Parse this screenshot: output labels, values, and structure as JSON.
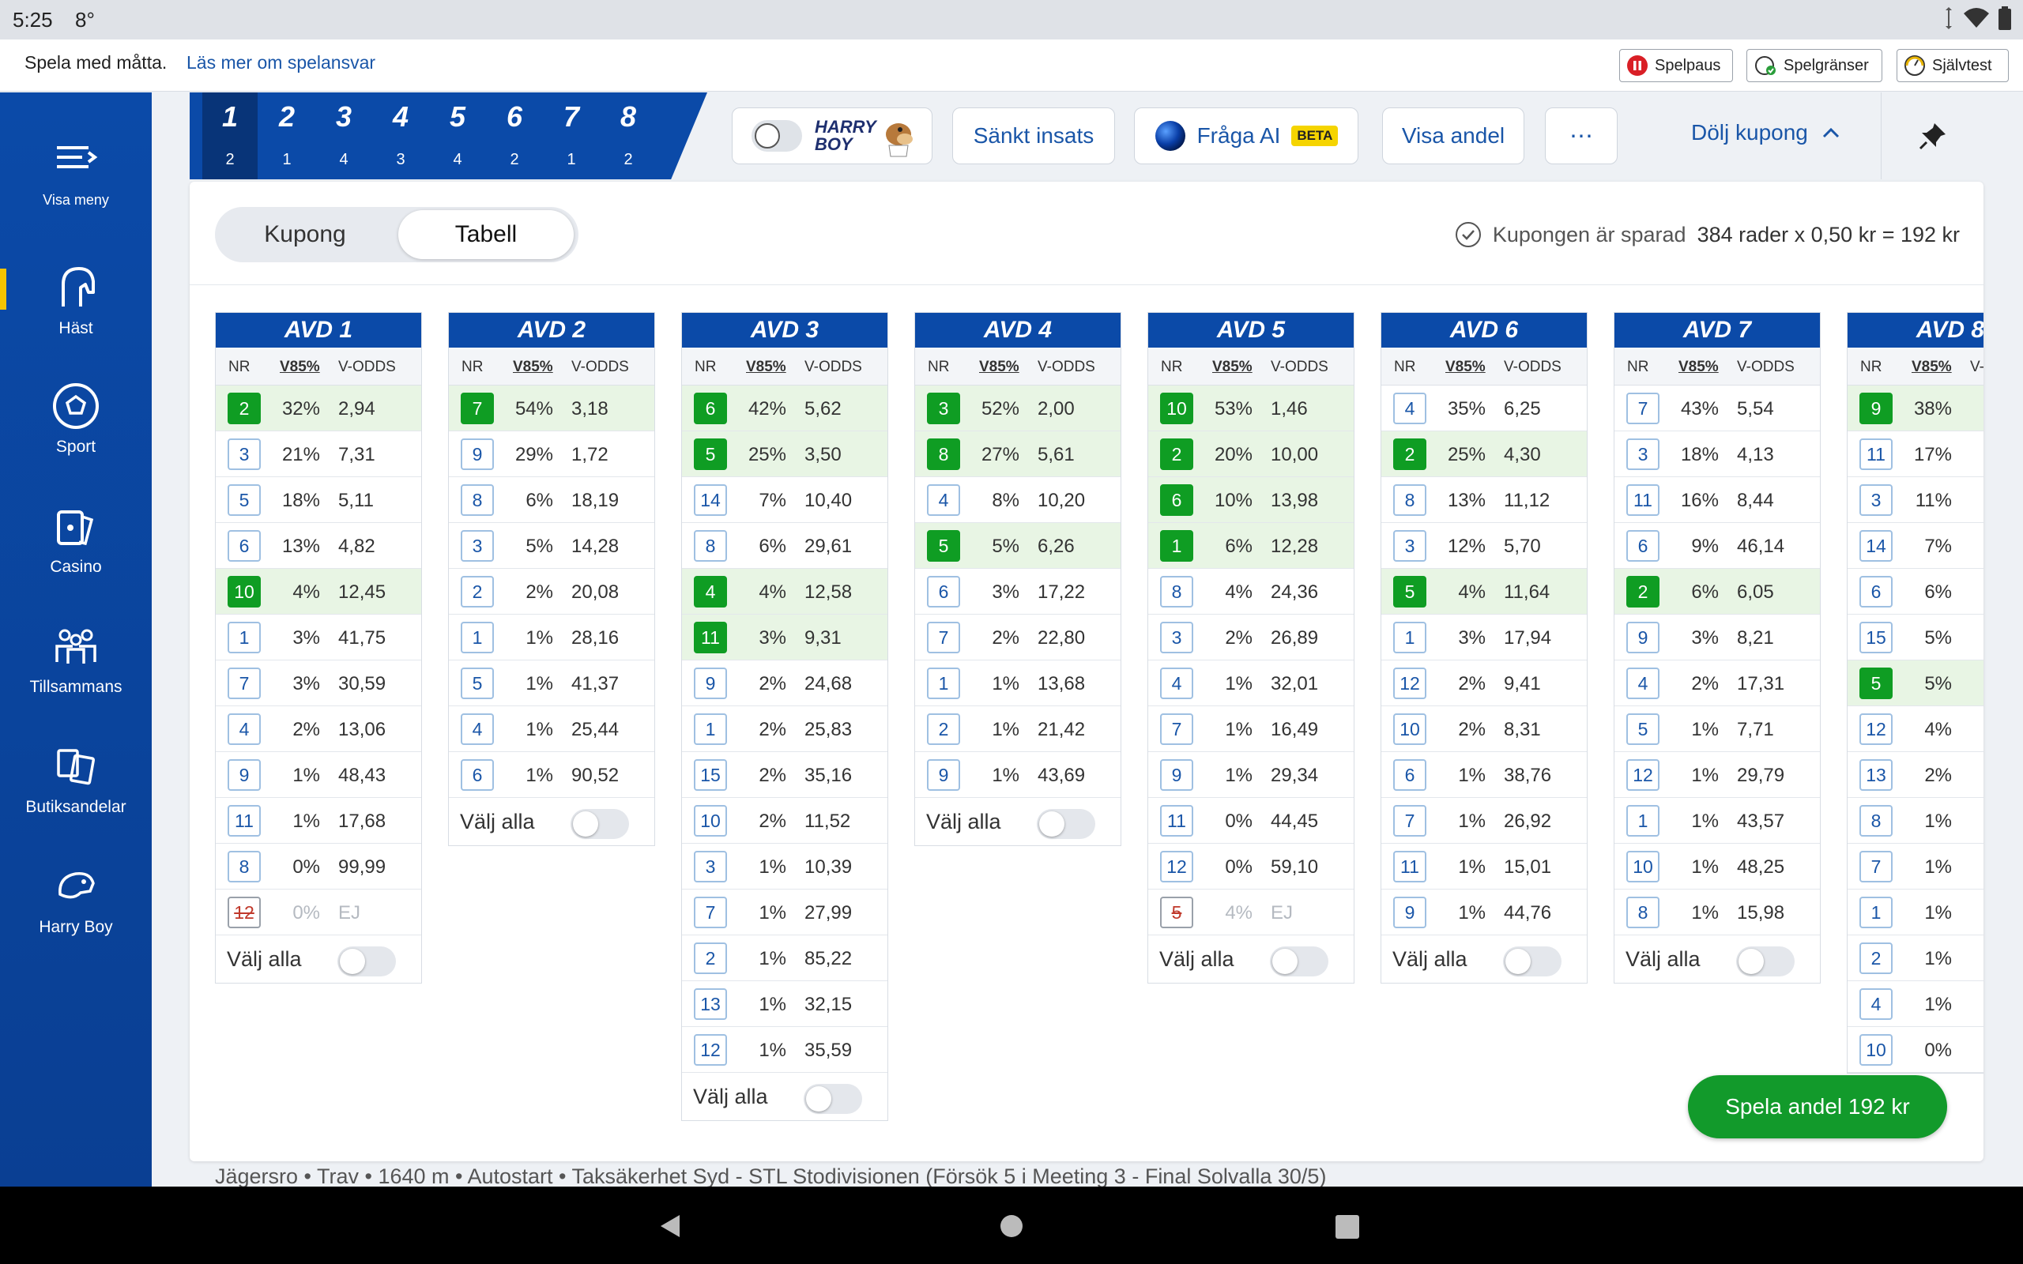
{
  "status_bar": {
    "time": "5:25",
    "temp": "8°"
  },
  "rg_bar": {
    "message": "Spela med måtta.",
    "link": "Läs mer om spelansvar",
    "buttons": [
      "Spelpaus",
      "Spelgränser",
      "Självtest"
    ]
  },
  "sidebar": {
    "menu_label": "Visa meny",
    "items": [
      {
        "label": "Häst",
        "icon": "horse-icon",
        "active": true
      },
      {
        "label": "Sport",
        "icon": "football-icon",
        "active": false
      },
      {
        "label": "Casino",
        "icon": "casino-icon",
        "active": false
      },
      {
        "label": "Tillsammans",
        "icon": "group-icon",
        "active": false
      },
      {
        "label": "Butiksandelar",
        "icon": "store-share-icon",
        "active": false
      },
      {
        "label": "Harry Boy",
        "icon": "harry-boy-icon",
        "active": false
      }
    ]
  },
  "race_tabs": [
    {
      "num": "1",
      "count": "2"
    },
    {
      "num": "2",
      "count": "1"
    },
    {
      "num": "3",
      "count": "4"
    },
    {
      "num": "4",
      "count": "3"
    },
    {
      "num": "5",
      "count": "4"
    },
    {
      "num": "6",
      "count": "2"
    },
    {
      "num": "7",
      "count": "1"
    },
    {
      "num": "8",
      "count": "2"
    }
  ],
  "toolbar": {
    "harry_boy_logo": "HARRY BOY",
    "sankt_insats": "Sänkt insats",
    "fraga_ai": "Fråga AI",
    "beta": "BETA",
    "visa_andel": "Visa andel",
    "more": "⋯",
    "dolj_kupong": "Dölj kupong"
  },
  "coupon": {
    "tab_kupong": "Kupong",
    "tab_tabell": "Tabell",
    "saved_text": "Kupongen är sparad",
    "summary": "384 rader x 0,50 kr = 192 kr"
  },
  "columns": {
    "nr": "NR",
    "v85": "V85%",
    "vodds": "V-ODDS"
  },
  "valj_alla": "Välj alla",
  "races": [
    {
      "title": "AVD 1",
      "rows": [
        {
          "nr": "2",
          "pct": "32%",
          "odds": "2,94",
          "sel": true
        },
        {
          "nr": "3",
          "pct": "21%",
          "odds": "7,31"
        },
        {
          "nr": "5",
          "pct": "18%",
          "odds": "5,11"
        },
        {
          "nr": "6",
          "pct": "13%",
          "odds": "4,82"
        },
        {
          "nr": "10",
          "pct": "4%",
          "odds": "12,45",
          "sel": true
        },
        {
          "nr": "1",
          "pct": "3%",
          "odds": "41,75"
        },
        {
          "nr": "7",
          "pct": "3%",
          "odds": "30,59"
        },
        {
          "nr": "4",
          "pct": "2%",
          "odds": "13,06"
        },
        {
          "nr": "9",
          "pct": "1%",
          "odds": "48,43"
        },
        {
          "nr": "11",
          "pct": "1%",
          "odds": "17,68"
        },
        {
          "nr": "8",
          "pct": "0%",
          "odds": "99,99"
        },
        {
          "nr": "12",
          "pct": "0%",
          "odds": "EJ",
          "scratched": true
        }
      ]
    },
    {
      "title": "AVD 2",
      "rows": [
        {
          "nr": "7",
          "pct": "54%",
          "odds": "3,18",
          "sel": true
        },
        {
          "nr": "9",
          "pct": "29%",
          "odds": "1,72"
        },
        {
          "nr": "8",
          "pct": "6%",
          "odds": "18,19"
        },
        {
          "nr": "3",
          "pct": "5%",
          "odds": "14,28"
        },
        {
          "nr": "2",
          "pct": "2%",
          "odds": "20,08"
        },
        {
          "nr": "1",
          "pct": "1%",
          "odds": "28,16"
        },
        {
          "nr": "5",
          "pct": "1%",
          "odds": "41,37"
        },
        {
          "nr": "4",
          "pct": "1%",
          "odds": "25,44"
        },
        {
          "nr": "6",
          "pct": "1%",
          "odds": "90,52"
        }
      ]
    },
    {
      "title": "AVD 3",
      "rows": [
        {
          "nr": "6",
          "pct": "42%",
          "odds": "5,62",
          "sel": true
        },
        {
          "nr": "5",
          "pct": "25%",
          "odds": "3,50",
          "sel": true
        },
        {
          "nr": "14",
          "pct": "7%",
          "odds": "10,40"
        },
        {
          "nr": "8",
          "pct": "6%",
          "odds": "29,61"
        },
        {
          "nr": "4",
          "pct": "4%",
          "odds": "12,58",
          "sel": true
        },
        {
          "nr": "11",
          "pct": "3%",
          "odds": "9,31",
          "sel": true
        },
        {
          "nr": "9",
          "pct": "2%",
          "odds": "24,68"
        },
        {
          "nr": "1",
          "pct": "2%",
          "odds": "25,83"
        },
        {
          "nr": "15",
          "pct": "2%",
          "odds": "35,16"
        },
        {
          "nr": "10",
          "pct": "2%",
          "odds": "11,52"
        },
        {
          "nr": "3",
          "pct": "1%",
          "odds": "10,39"
        },
        {
          "nr": "7",
          "pct": "1%",
          "odds": "27,99"
        },
        {
          "nr": "2",
          "pct": "1%",
          "odds": "85,22"
        },
        {
          "nr": "13",
          "pct": "1%",
          "odds": "32,15"
        },
        {
          "nr": "12",
          "pct": "1%",
          "odds": "35,59"
        }
      ]
    },
    {
      "title": "AVD 4",
      "rows": [
        {
          "nr": "3",
          "pct": "52%",
          "odds": "2,00",
          "sel": true
        },
        {
          "nr": "8",
          "pct": "27%",
          "odds": "5,61",
          "sel": true
        },
        {
          "nr": "4",
          "pct": "8%",
          "odds": "10,20"
        },
        {
          "nr": "5",
          "pct": "5%",
          "odds": "6,26",
          "sel": true
        },
        {
          "nr": "6",
          "pct": "3%",
          "odds": "17,22"
        },
        {
          "nr": "7",
          "pct": "2%",
          "odds": "22,80"
        },
        {
          "nr": "1",
          "pct": "1%",
          "odds": "13,68"
        },
        {
          "nr": "2",
          "pct": "1%",
          "odds": "21,42"
        },
        {
          "nr": "9",
          "pct": "1%",
          "odds": "43,69"
        }
      ]
    },
    {
      "title": "AVD 5",
      "rows": [
        {
          "nr": "10",
          "pct": "53%",
          "odds": "1,46",
          "sel": true
        },
        {
          "nr": "2",
          "pct": "20%",
          "odds": "10,00",
          "sel": true
        },
        {
          "nr": "6",
          "pct": "10%",
          "odds": "13,98",
          "sel": true
        },
        {
          "nr": "1",
          "pct": "6%",
          "odds": "12,28",
          "sel": true
        },
        {
          "nr": "8",
          "pct": "4%",
          "odds": "24,36"
        },
        {
          "nr": "3",
          "pct": "2%",
          "odds": "26,89"
        },
        {
          "nr": "4",
          "pct": "1%",
          "odds": "32,01"
        },
        {
          "nr": "7",
          "pct": "1%",
          "odds": "16,49"
        },
        {
          "nr": "9",
          "pct": "1%",
          "odds": "29,34"
        },
        {
          "nr": "11",
          "pct": "0%",
          "odds": "44,45"
        },
        {
          "nr": "12",
          "pct": "0%",
          "odds": "59,10"
        },
        {
          "nr": "5",
          "pct": "4%",
          "odds": "EJ",
          "scratched": true
        }
      ]
    },
    {
      "title": "AVD 6",
      "rows": [
        {
          "nr": "4",
          "pct": "35%",
          "odds": "6,25"
        },
        {
          "nr": "2",
          "pct": "25%",
          "odds": "4,30",
          "sel": true
        },
        {
          "nr": "8",
          "pct": "13%",
          "odds": "11,12"
        },
        {
          "nr": "3",
          "pct": "12%",
          "odds": "5,70"
        },
        {
          "nr": "5",
          "pct": "4%",
          "odds": "11,64",
          "sel": true
        },
        {
          "nr": "1",
          "pct": "3%",
          "odds": "17,94"
        },
        {
          "nr": "12",
          "pct": "2%",
          "odds": "9,41"
        },
        {
          "nr": "10",
          "pct": "2%",
          "odds": "8,31"
        },
        {
          "nr": "6",
          "pct": "1%",
          "odds": "38,76"
        },
        {
          "nr": "7",
          "pct": "1%",
          "odds": "26,92"
        },
        {
          "nr": "11",
          "pct": "1%",
          "odds": "15,01"
        },
        {
          "nr": "9",
          "pct": "1%",
          "odds": "44,76"
        }
      ]
    },
    {
      "title": "AVD 7",
      "rows": [
        {
          "nr": "7",
          "pct": "43%",
          "odds": "5,54"
        },
        {
          "nr": "3",
          "pct": "18%",
          "odds": "4,13"
        },
        {
          "nr": "11",
          "pct": "16%",
          "odds": "8,44"
        },
        {
          "nr": "6",
          "pct": "9%",
          "odds": "46,14"
        },
        {
          "nr": "2",
          "pct": "6%",
          "odds": "6,05",
          "sel": true
        },
        {
          "nr": "9",
          "pct": "3%",
          "odds": "8,21"
        },
        {
          "nr": "4",
          "pct": "2%",
          "odds": "17,31"
        },
        {
          "nr": "5",
          "pct": "1%",
          "odds": "7,71"
        },
        {
          "nr": "12",
          "pct": "1%",
          "odds": "29,79"
        },
        {
          "nr": "1",
          "pct": "1%",
          "odds": "43,57"
        },
        {
          "nr": "10",
          "pct": "1%",
          "odds": "48,25"
        },
        {
          "nr": "8",
          "pct": "1%",
          "odds": "15,98"
        }
      ]
    },
    {
      "title": "AVD 8",
      "rows": [
        {
          "nr": "9",
          "pct": "38%",
          "odds": "",
          "sel": true
        },
        {
          "nr": "11",
          "pct": "17%",
          "odds": ""
        },
        {
          "nr": "3",
          "pct": "11%",
          "odds": ""
        },
        {
          "nr": "14",
          "pct": "7%",
          "odds": ""
        },
        {
          "nr": "6",
          "pct": "6%",
          "odds": ""
        },
        {
          "nr": "15",
          "pct": "5%",
          "odds": ""
        },
        {
          "nr": "5",
          "pct": "5%",
          "odds": "",
          "sel": true
        },
        {
          "nr": "12",
          "pct": "4%",
          "odds": ""
        },
        {
          "nr": "13",
          "pct": "2%",
          "odds": ""
        },
        {
          "nr": "8",
          "pct": "1%",
          "odds": ""
        },
        {
          "nr": "7",
          "pct": "1%",
          "odds": ""
        },
        {
          "nr": "1",
          "pct": "1%",
          "odds": ""
        },
        {
          "nr": "2",
          "pct": "1%",
          "odds": ""
        },
        {
          "nr": "4",
          "pct": "1%",
          "odds": ""
        },
        {
          "nr": "10",
          "pct": "0%",
          "odds": ""
        }
      ]
    }
  ],
  "spela_button": "Spela andel 192 kr",
  "race_info": "Jägersro  •  Trav  •  1640 m  •  Autostart  •  Taksäkerhet Syd - STL Stodivisionen (Försök 5 i Meeting 3 - Final Solvalla 30/5)",
  "colors": {
    "brand_blue": "#0b4aa8",
    "selected_green": "#0f9d23",
    "highlight_row": "#e8f5e4",
    "accent_yellow": "#f5c400"
  }
}
